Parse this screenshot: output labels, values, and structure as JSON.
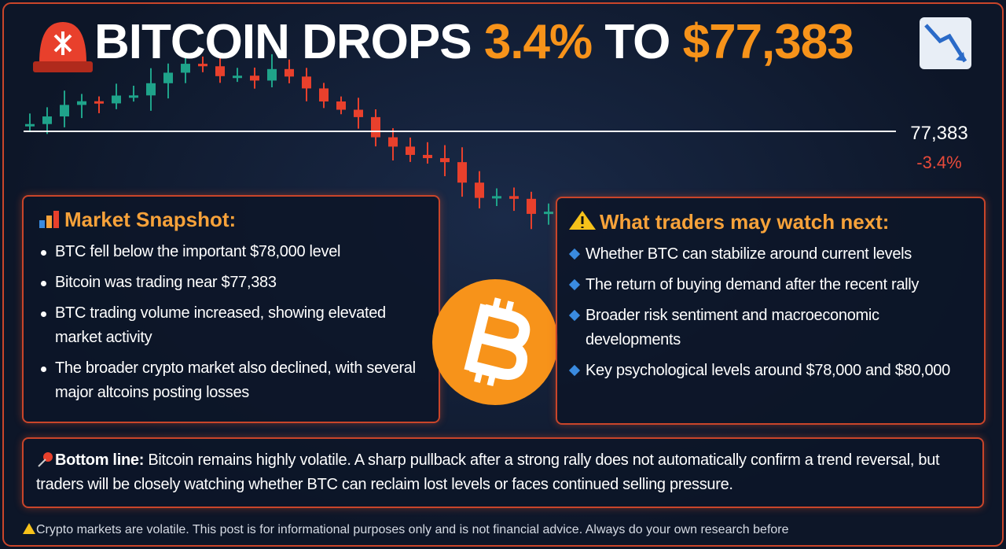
{
  "header": {
    "title_parts": [
      "BITCOIN DROPS",
      "3.4%",
      "TO",
      "$77,383"
    ]
  },
  "price_tag": {
    "price": "77,383",
    "change": "-3.4%"
  },
  "snapshot": {
    "heading": "Market Snapshot:",
    "items": [
      "BTC fell below the important $78,000 level",
      "Bitcoin was trading near $77,383",
      "BTC trading volume increased, showing elevated market activity",
      "The broader crypto market also declined, with several major altcoins posting losses"
    ]
  },
  "watch": {
    "heading": "What traders may watch next:",
    "items": [
      "Whether BTC can stabilize around current levels",
      "The return of buying demand after the recent rally",
      "Broader risk sentiment and macroeconomic developments",
      "Key psychological levels around $78,000 and $80,000"
    ]
  },
  "bottom_line": {
    "label": "Bottom line:",
    "text": "Bitcoin remains highly volatile. A sharp pullback after a strong rally does not automatically confirm a trend reversal, but traders will be closely watching whether BTC can reclaim lost levels or faces continued selling pressure."
  },
  "disclaimer": "Crypto markets are volatile. This post is for informational purposes only and is not financial advice. Always do your own research before"
}
